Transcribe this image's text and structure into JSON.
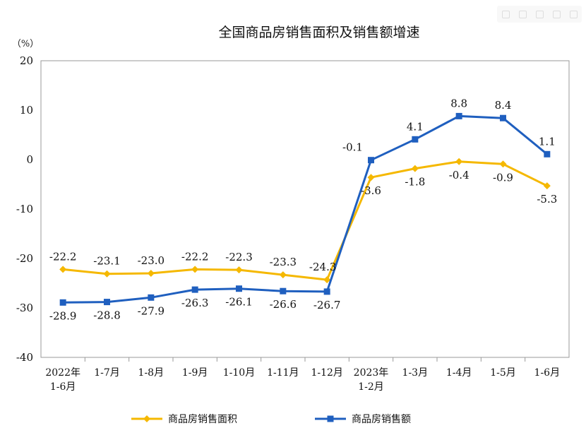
{
  "chart_data": {
    "type": "line",
    "title": "全国商品房销售面积及销售额增速",
    "unit_label": "（%）",
    "ylim": [
      -40,
      20
    ],
    "yticks": [
      "20",
      "10",
      "0",
      "-10",
      "-20",
      "-30",
      "-40"
    ],
    "categories": [
      [
        "2022年",
        "1-6月"
      ],
      [
        "1-7月"
      ],
      [
        "1-8月"
      ],
      [
        "1-9月"
      ],
      [
        "1-10月"
      ],
      [
        "1-11月"
      ],
      [
        "1-12月"
      ],
      [
        "2023年",
        "1-2月"
      ],
      [
        "1-3月"
      ],
      [
        "1-4月"
      ],
      [
        "1-5月"
      ],
      [
        "1-6月"
      ]
    ],
    "series": [
      {
        "name": "商品房销售面积",
        "color": "#F5B800",
        "marker": "diamond",
        "values": [
          -22.2,
          -23.1,
          -23.0,
          -22.2,
          -22.3,
          -23.3,
          -24.3,
          -3.6,
          -1.8,
          -0.4,
          -0.9,
          -5.3
        ],
        "labels": [
          "-22.2",
          "-23.1",
          "-23.0",
          "-22.2",
          "-22.3",
          "-23.3",
          "-24.3",
          "-3.6",
          "-1.8",
          "-0.4",
          "-0.9",
          "-5.3"
        ]
      },
      {
        "name": "商品房销售额",
        "color": "#1F5FBF",
        "marker": "square",
        "values": [
          -28.9,
          -28.8,
          -27.9,
          -26.3,
          -26.1,
          -26.6,
          -26.7,
          -0.1,
          4.1,
          8.8,
          8.4,
          1.1
        ],
        "labels": [
          "-28.9",
          "-28.8",
          "-27.9",
          "-26.3",
          "-26.1",
          "-26.6",
          "-26.7",
          "-0.1",
          "4.1",
          "8.8",
          "8.4",
          "1.1"
        ]
      }
    ],
    "grid": false,
    "legend_position": "bottom"
  }
}
